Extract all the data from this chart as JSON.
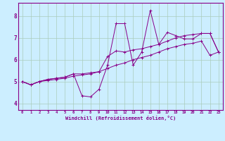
{
  "title": "",
  "xlabel": "Windchill (Refroidissement éolien,°C)",
  "background_color": "#cceeff",
  "grid_color": "#aaccbb",
  "line_color": "#880088",
  "xlim": [
    -0.5,
    23.5
  ],
  "ylim": [
    3.7,
    8.6
  ],
  "xticks": [
    0,
    1,
    2,
    3,
    4,
    5,
    6,
    7,
    8,
    9,
    10,
    11,
    12,
    13,
    14,
    15,
    16,
    17,
    18,
    19,
    20,
    21,
    22,
    23
  ],
  "yticks": [
    4,
    5,
    6,
    7,
    8
  ],
  "series1": [
    5.0,
    4.85,
    5.0,
    5.1,
    5.15,
    5.2,
    5.35,
    4.35,
    4.3,
    4.65,
    5.75,
    7.65,
    7.65,
    5.75,
    6.35,
    8.25,
    6.7,
    7.25,
    7.1,
    6.95,
    6.95,
    7.2,
    7.2,
    6.35
  ],
  "series2": [
    5.0,
    4.85,
    5.0,
    5.1,
    5.15,
    5.2,
    5.35,
    5.35,
    5.4,
    5.45,
    6.15,
    6.4,
    6.35,
    6.45,
    6.5,
    6.6,
    6.7,
    6.85,
    7.0,
    7.1,
    7.15,
    7.2,
    7.2,
    6.35
  ],
  "series3": [
    5.0,
    4.85,
    5.0,
    5.05,
    5.1,
    5.15,
    5.25,
    5.3,
    5.35,
    5.45,
    5.6,
    5.75,
    5.85,
    6.0,
    6.1,
    6.2,
    6.35,
    6.5,
    6.6,
    6.7,
    6.75,
    6.85,
    6.2,
    6.35
  ]
}
